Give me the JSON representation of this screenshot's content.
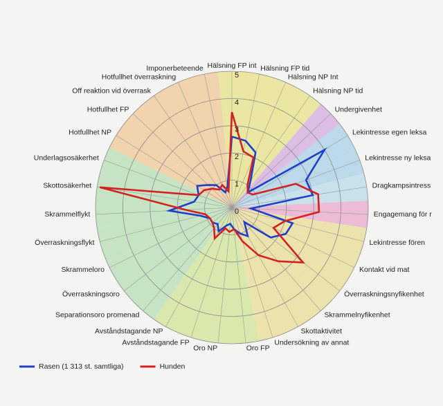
{
  "chart_data": {
    "type": "radar",
    "categories": [
      "Hälsning FP int",
      "Hälsning FP tid",
      "Hälsning NP Int",
      "Hälsning NP tid",
      "Undergivenhet",
      "Lekintresse egen leksa",
      "Lekintresse ny leksa",
      "Dragkampsintress",
      "Engagemang för r",
      "Lekintresse fören",
      "Kontakt vid mat",
      "Överraskningsnyfikenhet",
      "Skrammelnyfikenhet",
      "Skottaktivitet",
      "Undersökning av annat",
      "Oro FP",
      "Oro NP",
      "Avståndstagande FP",
      "Avståndstagande NP",
      "Separationsoro promenad",
      "Överraskningsoro",
      "Skrammeloro",
      "Överraskningsflykt",
      "Skrammelflykt",
      "Skottosäkerhet",
      "Underlagsosäkerhet",
      "Hotfullhet NP",
      "Hotfullhet FP",
      "Off reaktion vid överrask",
      "Hotfullhet överraskning",
      "Imponerbeteende"
    ],
    "sector_colors": [
      "#e9e7a2",
      "#e9e7a2",
      "#e9e7a2",
      "#e9e7a2",
      "#dcbde3",
      "#bcd9ea",
      "#bcd9ea",
      "#c9e1ea",
      "#ecbcd6",
      "#ece2ac",
      "#ece2ac",
      "#ece2ac",
      "#ece2ac",
      "#ece2ac",
      "#ece2ac",
      "#d9e8ad",
      "#d9e8ad",
      "#d9e8ad",
      "#d9e8ad",
      "#c6e3c4",
      "#c6e3c4",
      "#c6e3c4",
      "#c6e3c4",
      "#c6e3c4",
      "#c6e3c4",
      "#c6e3c4",
      "#f1d3ad",
      "#f1d3ad",
      "#f1d3ad",
      "#f1d3ad",
      "#f1d3ad"
    ],
    "series": [
      {
        "name": "Rasen (1 313 st. samtliga)",
        "color": "#1f3fc8",
        "values": [
          2.6,
          2.5,
          2.2,
          1.2,
          0.8,
          4.0,
          2.9,
          3.0,
          0.7,
          2.3,
          2.2,
          1.8,
          0.7,
          1.2,
          1.0,
          0.8,
          0.6,
          0.7,
          1.0,
          0.8,
          0.9,
          0.9,
          1.2,
          2.3,
          1.4,
          1.3,
          1.5,
          1.2,
          1.0,
          0.6,
          0.8
        ]
      },
      {
        "name": "Hunden",
        "color": "#d42020",
        "values": [
          3.5,
          2.1,
          2.0,
          1.0,
          0.8,
          0.9,
          2.5,
          3.2,
          3.2,
          2.0,
          1.7,
          3.3,
          2.6,
          2.0,
          1.3,
          0.8,
          0.9,
          0.8,
          1.3,
          1.0,
          0.9,
          0.9,
          1.0,
          1.7,
          4.9,
          1.3,
          1.2,
          1.0,
          0.8,
          0.9,
          0.6
        ]
      }
    ],
    "ylim": [
      0,
      5
    ],
    "yticks": [
      0,
      1,
      2,
      3,
      4,
      5
    ],
    "grid": true,
    "legend": "bottom-left"
  }
}
